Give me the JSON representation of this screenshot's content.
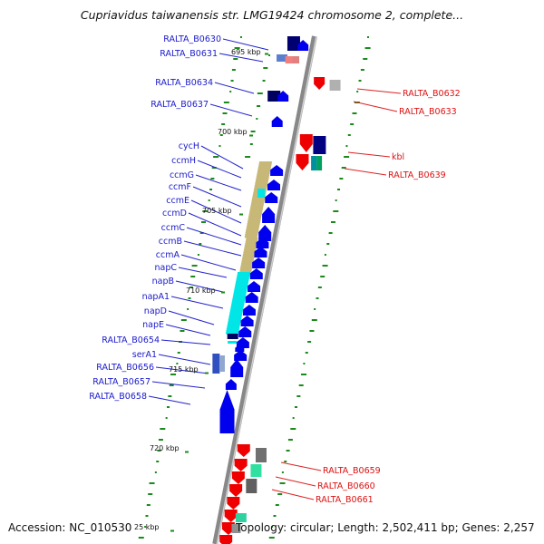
{
  "title": "Cupriavidus taiwanensis str. LMG19424 chromosome 2, complete...",
  "footer": {
    "accession": "Accession: NC_010530",
    "info": "Topology: circular; Length: 2,502,411 bp; Genes: 2,257"
  },
  "colors": {
    "plus_strand": "#0000ee",
    "minus_strand": "#ee0000",
    "backbone": "#999999",
    "gc_marks": "#1a8a1a",
    "operon_khaki": "#c8b878",
    "highlight_cyan": "#00e6e6",
    "dark_navy": "#000060"
  },
  "tick_labels": [
    "695 kbp",
    "700 kbp",
    "705 kbp",
    "710 kbp",
    "715 kbp",
    "720 kbp",
    "25 kbp"
  ],
  "left_genes": [
    "RALTA_B0630",
    "RALTA_B0631",
    "RALTA_B0634",
    "RALTA_B0637",
    "cycH",
    "ccmH",
    "ccmG",
    "ccmF",
    "ccmE",
    "ccmD",
    "ccmC",
    "ccmB",
    "ccmA",
    "napC",
    "napB",
    "napA1",
    "napD",
    "napE",
    "RALTA_B0654",
    "serA1",
    "RALTA_B0656",
    "RALTA_B0657",
    "RALTA_B0658"
  ],
  "right_genes": [
    "RALTA_B0632",
    "RALTA_B0633",
    "kbl",
    "RALTA_B0639",
    "RALTA_B0659",
    "RALTA_B0660",
    "RALTA_B0661"
  ]
}
